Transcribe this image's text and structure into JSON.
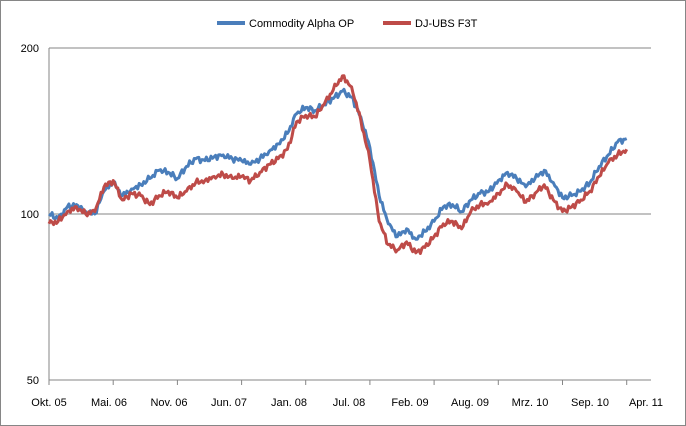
{
  "chart_data": {
    "type": "line",
    "title": "",
    "xlabel": "",
    "ylabel": "",
    "y_scale": "log",
    "ylim": [
      50,
      200
    ],
    "y_ticks": [
      "50",
      "100",
      "200"
    ],
    "x_ticks": [
      "Okt. 05",
      "Mai. 06",
      "Nov. 06",
      "Jun. 07",
      "Jan. 08",
      "Jul. 08",
      "Feb. 09",
      "Aug. 09",
      "Mrz. 10",
      "Sep. 10",
      "Apr. 11"
    ],
    "grid": "horizontal major gridlines",
    "legend_position": "top",
    "series": [
      {
        "name": "Commodity Alpha OP",
        "color": "#4a7ebb",
        "x": [
          "2005-10",
          "2005-11",
          "2005-12",
          "2006-01",
          "2006-02",
          "2006-03",
          "2006-04",
          "2006-05",
          "2006-06",
          "2006-07",
          "2006-08",
          "2006-09",
          "2006-10",
          "2006-11",
          "2006-12",
          "2007-01",
          "2007-02",
          "2007-03",
          "2007-04",
          "2007-05",
          "2007-06",
          "2007-07",
          "2007-08",
          "2007-09",
          "2007-10",
          "2007-11",
          "2007-12",
          "2008-01",
          "2008-02",
          "2008-03",
          "2008-04",
          "2008-05",
          "2008-06",
          "2008-07",
          "2008-08",
          "2008-09",
          "2008-10",
          "2008-11",
          "2008-12",
          "2009-01",
          "2009-02",
          "2009-03",
          "2009-04",
          "2009-05",
          "2009-06",
          "2009-07",
          "2009-08",
          "2009-09",
          "2009-10",
          "2009-11",
          "2009-12",
          "2010-01",
          "2010-02",
          "2010-03",
          "2010-04",
          "2010-05",
          "2010-06",
          "2010-07",
          "2010-08",
          "2010-09",
          "2010-10",
          "2010-11",
          "2010-12",
          "2011-01"
        ],
        "values": [
          100,
          98,
          103,
          104,
          101,
          100,
          110,
          114,
          108,
          111,
          113,
          116,
          120,
          119,
          116,
          122,
          126,
          125,
          127,
          128,
          126,
          125,
          123,
          126,
          130,
          134,
          140,
          152,
          156,
          154,
          158,
          162,
          167,
          163,
          150,
          132,
          108,
          96,
          91,
          94,
          90,
          93,
          97,
          103,
          104,
          101,
          106,
          109,
          110,
          115,
          119,
          116,
          112,
          116,
          120,
          114,
          107,
          108,
          110,
          114,
          122,
          128,
          135,
          137
        ]
      },
      {
        "name": "DJ-UBS F3T",
        "color": "#be4b48",
        "x": [
          "2005-10",
          "2005-11",
          "2005-12",
          "2006-01",
          "2006-02",
          "2006-03",
          "2006-04",
          "2006-05",
          "2006-06",
          "2006-07",
          "2006-08",
          "2006-09",
          "2006-10",
          "2006-11",
          "2006-12",
          "2007-01",
          "2007-02",
          "2007-03",
          "2007-04",
          "2007-05",
          "2007-06",
          "2007-07",
          "2007-08",
          "2007-09",
          "2007-10",
          "2007-11",
          "2007-12",
          "2008-01",
          "2008-02",
          "2008-03",
          "2008-04",
          "2008-05",
          "2008-06",
          "2008-07",
          "2008-08",
          "2008-09",
          "2008-10",
          "2008-11",
          "2008-12",
          "2009-01",
          "2009-02",
          "2009-03",
          "2009-04",
          "2009-05",
          "2009-06",
          "2009-07",
          "2009-08",
          "2009-09",
          "2009-10",
          "2009-11",
          "2009-12",
          "2010-01",
          "2010-02",
          "2010-03",
          "2010-04",
          "2010-05",
          "2010-06",
          "2010-07",
          "2010-08",
          "2010-09",
          "2010-10",
          "2010-11",
          "2010-12",
          "2011-01"
        ],
        "values": [
          96,
          97,
          101,
          103,
          100,
          101,
          112,
          115,
          106,
          109,
          108,
          104,
          108,
          110,
          107,
          110,
          114,
          115,
          117,
          118,
          116,
          117,
          115,
          119,
          123,
          126,
          131,
          147,
          151,
          150,
          158,
          168,
          178,
          170,
          148,
          125,
          97,
          88,
          86,
          89,
          85,
          87,
          91,
          96,
          97,
          94,
          101,
          104,
          105,
          109,
          113,
          110,
          105,
          109,
          113,
          106,
          101,
          103,
          106,
          110,
          117,
          124,
          128,
          131
        ]
      }
    ]
  }
}
